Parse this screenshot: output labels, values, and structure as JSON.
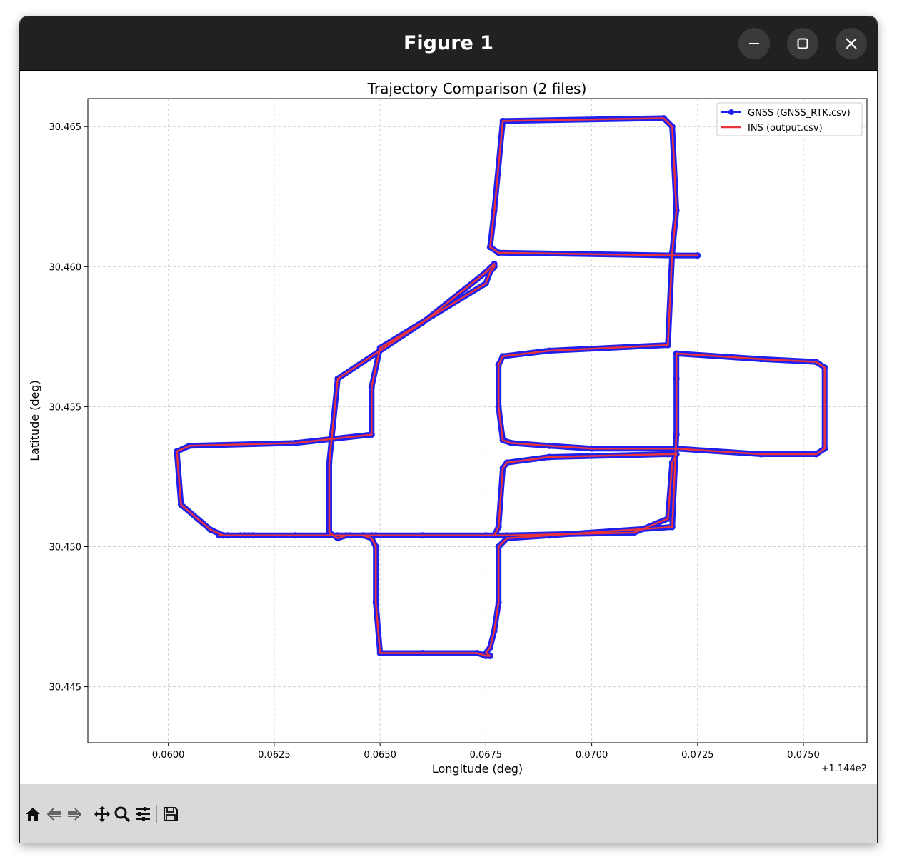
{
  "window": {
    "title": "Figure 1",
    "controls": [
      "minimize",
      "maximize",
      "close"
    ]
  },
  "toolbar": {
    "icons": [
      "home-icon",
      "back-icon",
      "forward-icon",
      "pan-icon",
      "zoom-icon",
      "configure-subplots-icon",
      "save-icon"
    ]
  },
  "chart_data": {
    "type": "line",
    "title": "Trajectory Comparison (2 files)",
    "xlabel": "Longitude (deg)",
    "ylabel": "Latitude (deg)",
    "x_offset_label": "+1.144e2",
    "xlim": [
      0.0581,
      0.0765
    ],
    "ylim": [
      30.443,
      30.466
    ],
    "xticks": [
      0.06,
      0.0625,
      0.065,
      0.0675,
      0.07,
      0.0725,
      0.075
    ],
    "xtick_labels": [
      "0.0600",
      "0.0625",
      "0.0650",
      "0.0675",
      "0.0700",
      "0.0725",
      "0.0750"
    ],
    "yticks": [
      30.445,
      30.45,
      30.455,
      30.46,
      30.465
    ],
    "ytick_labels": [
      "30.445",
      "30.450",
      "30.455",
      "30.460",
      "30.465"
    ],
    "grid": true,
    "legend_position": "upper right",
    "series": [
      {
        "name": "GNSS (GNSS_RTK.csv)",
        "color": "#1f1ff0",
        "marker": "circle",
        "x": [
          0.0725,
          0.0719,
          0.0678,
          0.0676,
          0.0677,
          0.0679,
          0.0717,
          0.0719,
          0.072,
          0.0719,
          0.0718,
          0.069,
          0.0679,
          0.0678,
          0.0678,
          0.0679,
          0.0681,
          0.069,
          0.07,
          0.072,
          0.074,
          0.0753,
          0.0755,
          0.0755,
          0.0753,
          0.074,
          0.072,
          0.072,
          0.072,
          0.0719,
          0.069,
          0.068,
          0.0678,
          0.0678,
          0.0677,
          0.0676,
          0.0675,
          0.0676,
          0.0676,
          0.0675,
          0.0673,
          0.066,
          0.065,
          0.0649,
          0.0649,
          0.0648,
          0.0646,
          0.0643,
          0.0642,
          0.064,
          0.0638,
          0.0638,
          0.064,
          0.066,
          0.0675,
          0.0677,
          0.0677,
          0.0676,
          0.0675,
          0.065,
          0.0648,
          0.0648,
          0.063,
          0.0605,
          0.0602,
          0.0603,
          0.061,
          0.0613,
          0.063,
          0.0648,
          0.0649,
          0.068,
          0.071,
          0.0718,
          0.0719,
          0.072,
          0.0718,
          0.069,
          0.068,
          0.0679,
          0.0678,
          0.0677,
          0.0675,
          0.066,
          0.064,
          0.062,
          0.0619,
          0.0618,
          0.0617,
          0.0614,
          0.0612,
          0.0613
        ],
        "y": [
          30.4604,
          30.4604,
          30.4605,
          30.4607,
          30.462,
          30.4652,
          30.4653,
          30.465,
          30.462,
          30.4605,
          30.4572,
          30.457,
          30.4568,
          30.4565,
          30.455,
          30.4538,
          30.4537,
          30.4536,
          30.4535,
          30.4535,
          30.4533,
          30.4533,
          30.4535,
          30.4564,
          30.4566,
          30.4567,
          30.4569,
          30.456,
          30.454,
          30.4507,
          30.4504,
          30.4503,
          30.45,
          30.448,
          30.447,
          30.4464,
          30.4462,
          30.4461,
          30.4461,
          30.4461,
          30.4462,
          30.4462,
          30.4462,
          30.448,
          30.45,
          30.4503,
          30.4504,
          30.4504,
          30.4504,
          30.4503,
          30.4505,
          30.453,
          30.456,
          30.458,
          30.4598,
          30.4601,
          30.46,
          30.4598,
          30.4594,
          30.4571,
          30.4557,
          30.454,
          30.4537,
          30.4536,
          30.4534,
          30.4515,
          30.4506,
          30.4504,
          30.4504,
          30.4504,
          30.4504,
          30.4504,
          30.4505,
          30.451,
          30.453,
          30.4533,
          30.4533,
          30.4532,
          30.453,
          30.4528,
          30.4507,
          30.4504,
          30.4504,
          30.4504,
          30.4504,
          30.4504,
          30.4504,
          30.4504,
          30.4504,
          30.4504,
          30.4504,
          30.4504
        ]
      },
      {
        "name": "INS (output.csv)",
        "color": "#e8343a",
        "marker": "none"
      }
    ]
  }
}
